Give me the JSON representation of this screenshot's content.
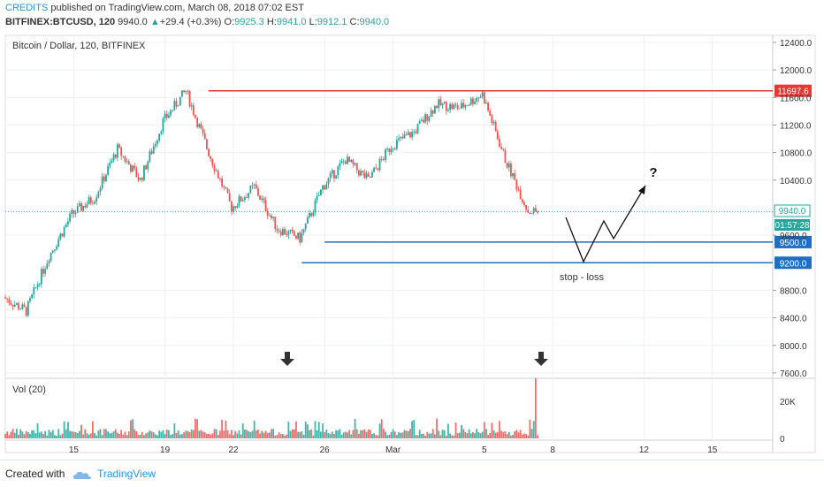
{
  "header": {
    "author": "CREDITS",
    "published_text": " published on TradingView.com, March 08, 2018 07:02 EST",
    "symbol": "BITFINEX:BTCUSD, 120",
    "last": "9940.0",
    "change": "+29.4 (+0.3%)",
    "o_label": "O:",
    "o_value": "9925.3",
    "h_label": "H:",
    "h_value": "9941.0",
    "l_label": "L:",
    "l_value": "9912.1",
    "c_label": "C:",
    "c_value": "9940.0"
  },
  "footer": {
    "created_with": "Created with",
    "brand": "TradingView"
  },
  "colors": {
    "up": "#26a69a",
    "down": "#ef5350",
    "resistance": "#e53935",
    "support": "#1e6fc4",
    "accent": "#2196f3"
  },
  "chart_data": [
    {
      "type": "candlestick",
      "title": "Bitcoin / Dollar, 120, BITFINEX",
      "y_ticks": [
        "12400.0",
        "12000.0",
        "11600.0",
        "11200.0",
        "10800.0",
        "10400.0",
        "9600.0",
        "8800.0",
        "8400.0",
        "8000.0",
        "7600.0"
      ],
      "x_ticks": [
        "15",
        "19",
        "22",
        "26",
        "Mar",
        "5",
        "8",
        "12",
        "15"
      ],
      "ylim": [
        7600,
        12500
      ],
      "series": [
        {
          "x": "Feb 12",
          "close": 8700
        },
        {
          "x": "Feb 13",
          "close": 8500
        },
        {
          "x": "Feb 14",
          "close": 9300
        },
        {
          "x": "Feb 15",
          "close": 9900
        },
        {
          "x": "Feb 16",
          "close": 10150
        },
        {
          "x": "Feb 17",
          "close": 10850
        },
        {
          "x": "Feb 18",
          "close": 10400
        },
        {
          "x": "Feb 19",
          "close": 11250
        },
        {
          "x": "Feb 20",
          "close": 11697.6
        },
        {
          "x": "Feb 21",
          "close": 10800
        },
        {
          "x": "Feb 22",
          "close": 10000
        },
        {
          "x": "Feb 23",
          "close": 10300
        },
        {
          "x": "Feb 24",
          "close": 9700
        },
        {
          "x": "Feb 25",
          "close": 9550
        },
        {
          "x": "Feb 26",
          "close": 10300
        },
        {
          "x": "Feb 27",
          "close": 10700
        },
        {
          "x": "Feb 28",
          "close": 10400
        },
        {
          "x": "Mar 1",
          "close": 10900
        },
        {
          "x": "Mar 2",
          "close": 11100
        },
        {
          "x": "Mar 3",
          "close": 11500
        },
        {
          "x": "Mar 4",
          "close": 11450
        },
        {
          "x": "Mar 5",
          "close": 11650
        },
        {
          "x": "Mar 6",
          "close": 10700
        },
        {
          "x": "Mar 7",
          "close": 9950
        },
        {
          "x": "Mar 8",
          "close": 9940
        }
      ],
      "levels": [
        {
          "label": "11697.6",
          "value": 11697.6,
          "kind": "resistance"
        },
        {
          "label": "9500.0",
          "value": 9500,
          "kind": "support"
        },
        {
          "label": "9200.0",
          "value": 9200,
          "kind": "support"
        }
      ],
      "current_price_label": "9940.0",
      "countdown_label": "01:57:28",
      "annotations": [
        {
          "text": "stop - loss"
        },
        {
          "text": "?"
        }
      ]
    },
    {
      "type": "bar",
      "title": "Vol (20)",
      "y_ticks": [
        "20K",
        "0"
      ],
      "note": "volume bars; spike on Mar 8"
    }
  ]
}
